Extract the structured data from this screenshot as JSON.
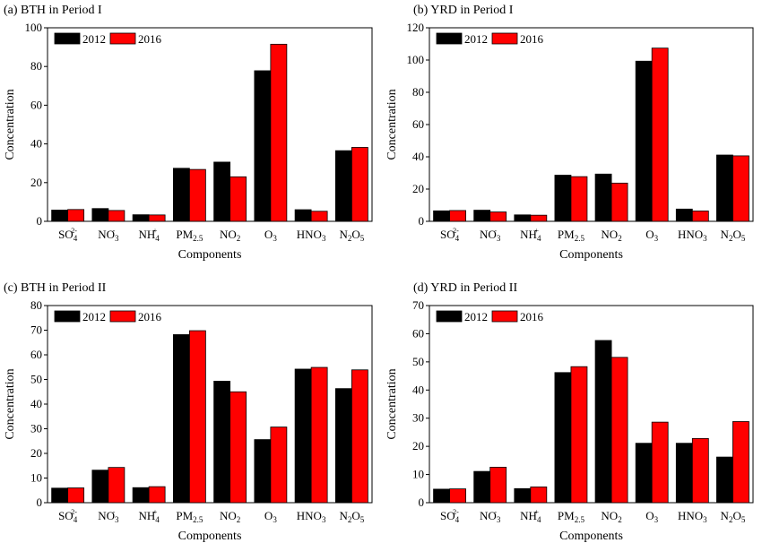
{
  "legend": {
    "series_2012": "2012",
    "series_2016": "2016"
  },
  "colors": {
    "series_2012": "#000000",
    "series_2016": "#ff0000"
  },
  "chart_data": [
    {
      "type": "bar",
      "title": "(a) BTH in Period I",
      "xlabel": "Components",
      "ylabel": "Concentration",
      "ylim": [
        0,
        100
      ],
      "yticks": [
        0,
        20,
        40,
        60,
        80,
        100
      ],
      "categories": [
        {
          "base": "SO",
          "sub": "4",
          "sup": "2-"
        },
        {
          "base": "NO",
          "sub": "3",
          "sup": "-"
        },
        {
          "base": "NH",
          "sub": "4",
          "sup": "+"
        },
        {
          "base": "PM",
          "sub": "2.5",
          "sup": ""
        },
        {
          "base": "NO",
          "sub": "2",
          "sup": ""
        },
        {
          "base": "O",
          "sub": "3",
          "sup": ""
        },
        {
          "base": "HNO",
          "sub": "3",
          "sup": ""
        },
        {
          "base": "N",
          "sub": "2",
          "mid": "O",
          "sub2": "5",
          "sup": ""
        }
      ],
      "series": [
        {
          "name": "2012",
          "values": [
            5.8,
            6.6,
            3.4,
            27.4,
            30.6,
            77.8,
            6.0,
            36.5
          ]
        },
        {
          "name": "2016",
          "values": [
            6.1,
            5.6,
            3.3,
            26.8,
            23.0,
            91.5,
            5.2,
            38.2
          ]
        }
      ],
      "legend_position": "top-left"
    },
    {
      "type": "bar",
      "title": "(b) YRD in Period I",
      "xlabel": "Components",
      "ylabel": "Concentration",
      "ylim": [
        0,
        120
      ],
      "yticks": [
        0,
        20,
        40,
        60,
        80,
        100,
        120
      ],
      "categories": [
        {
          "base": "SO",
          "sub": "4",
          "sup": "2-"
        },
        {
          "base": "NO",
          "sub": "3",
          "sup": "-"
        },
        {
          "base": "NH",
          "sub": "4",
          "sup": "+"
        },
        {
          "base": "PM",
          "sub": "2.5",
          "sup": ""
        },
        {
          "base": "NO",
          "sub": "2",
          "sup": ""
        },
        {
          "base": "O",
          "sub": "3",
          "sup": ""
        },
        {
          "base": "HNO",
          "sub": "3",
          "sup": ""
        },
        {
          "base": "N",
          "sub": "2",
          "mid": "O",
          "sub2": "5",
          "sup": ""
        }
      ],
      "series": [
        {
          "name": "2012",
          "values": [
            6.5,
            6.9,
            4.0,
            28.6,
            29.3,
            99.3,
            7.6,
            41.1
          ]
        },
        {
          "name": "2016",
          "values": [
            6.7,
            5.8,
            3.8,
            27.7,
            23.7,
            107.4,
            6.4,
            40.6
          ]
        }
      ],
      "legend_position": "top-left"
    },
    {
      "type": "bar",
      "title": "(c) BTH in Period II",
      "xlabel": "Components",
      "ylabel": "Concentration",
      "ylim": [
        0,
        80
      ],
      "yticks": [
        0,
        10,
        20,
        30,
        40,
        50,
        60,
        70,
        80
      ],
      "categories": [
        {
          "base": "SO",
          "sub": "4",
          "sup": "2-"
        },
        {
          "base": "NO",
          "sub": "3",
          "sup": "-"
        },
        {
          "base": "NH",
          "sub": "4",
          "sup": "+"
        },
        {
          "base": "PM",
          "sub": "2.5",
          "sup": ""
        },
        {
          "base": "NO",
          "sub": "2",
          "sup": ""
        },
        {
          "base": "O",
          "sub": "3",
          "sup": ""
        },
        {
          "base": "HNO",
          "sub": "3",
          "sup": ""
        },
        {
          "base": "N",
          "sub": "2",
          "mid": "O",
          "sub2": "5",
          "sup": ""
        }
      ],
      "series": [
        {
          "name": "2012",
          "values": [
            5.9,
            13.2,
            6.1,
            68.2,
            49.3,
            25.6,
            54.2,
            46.3
          ]
        },
        {
          "name": "2016",
          "values": [
            6.0,
            14.3,
            6.5,
            69.8,
            45.0,
            30.7,
            54.9,
            53.9
          ]
        }
      ],
      "legend_position": "top-left"
    },
    {
      "type": "bar",
      "title": "(d) YRD in Period II",
      "xlabel": "Components",
      "ylabel": "Concentration",
      "ylim": [
        0,
        70
      ],
      "yticks": [
        0,
        10,
        20,
        30,
        40,
        50,
        60,
        70
      ],
      "categories": [
        {
          "base": "SO",
          "sub": "4",
          "sup": "2-"
        },
        {
          "base": "NO",
          "sub": "3",
          "sup": "-"
        },
        {
          "base": "NH",
          "sub": "4",
          "sup": "+"
        },
        {
          "base": "PM",
          "sub": "2.5",
          "sup": ""
        },
        {
          "base": "NO",
          "sub": "2",
          "sup": ""
        },
        {
          "base": "O",
          "sub": "3",
          "sup": ""
        },
        {
          "base": "HNO",
          "sub": "3",
          "sup": ""
        },
        {
          "base": "N",
          "sub": "2",
          "mid": "O",
          "sub2": "5",
          "sup": ""
        }
      ],
      "series": [
        {
          "name": "2012",
          "values": [
            4.8,
            11.1,
            5.0,
            46.2,
            57.6,
            21.1,
            21.1,
            16.2
          ]
        },
        {
          "name": "2016",
          "values": [
            4.9,
            12.6,
            5.6,
            48.3,
            51.6,
            28.6,
            22.8,
            28.8
          ]
        }
      ],
      "legend_position": "top-left"
    }
  ]
}
